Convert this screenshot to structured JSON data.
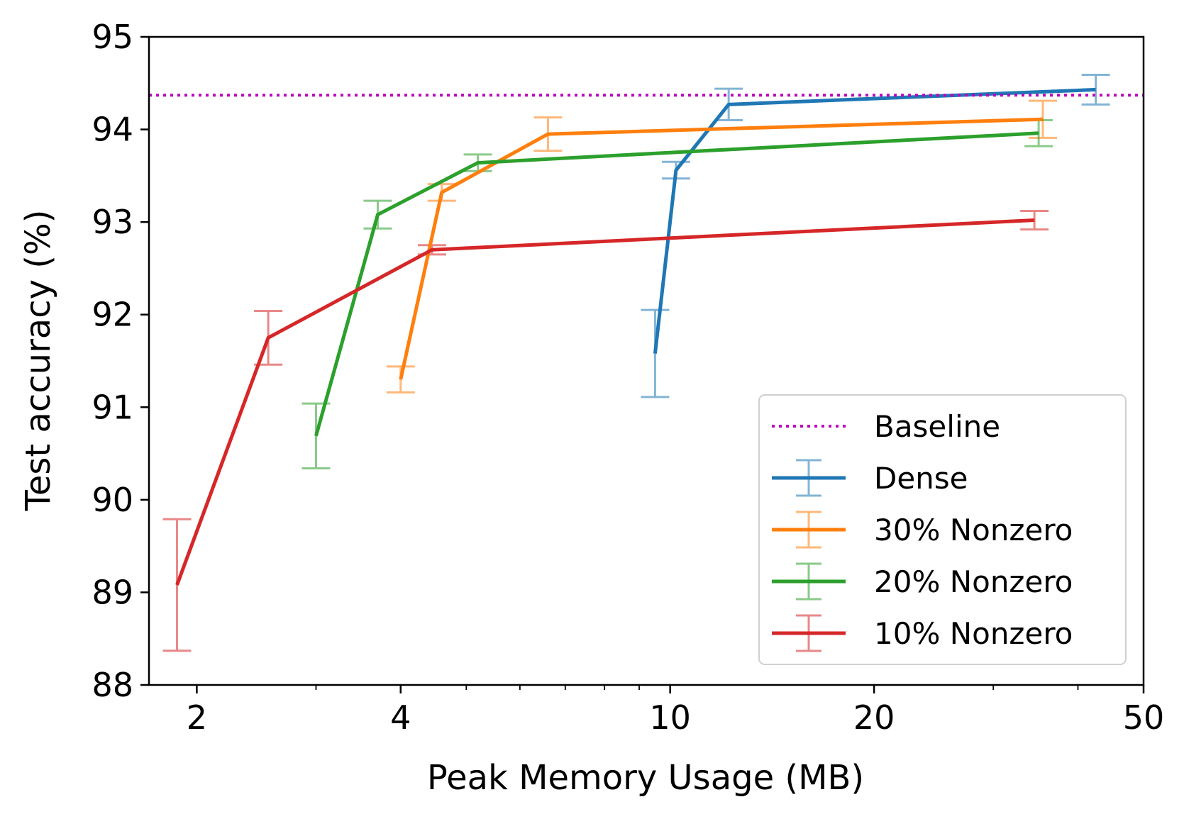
{
  "chart_data": {
    "type": "line",
    "xlabel": "Peak Memory Usage (MB)",
    "ylabel": "Test accuracy (%)",
    "xscale": "log",
    "xlim": [
      1.7,
      50
    ],
    "ylim": [
      88,
      95
    ],
    "xticks": [
      2,
      4,
      10,
      20,
      50
    ],
    "yticks": [
      88,
      89,
      90,
      91,
      92,
      93,
      94,
      95
    ],
    "grid": false,
    "legend_position": "lower-right",
    "baseline": {
      "name": "Baseline",
      "value": 94.37,
      "color": "#bf00bf",
      "style": "dotted"
    },
    "series": [
      {
        "name": "Dense",
        "color": "#1f77b4",
        "x": [
          9.5,
          10.2,
          12.2,
          42.5
        ],
        "y": [
          91.58,
          93.56,
          94.27,
          94.43
        ],
        "err": [
          0.47,
          0.09,
          0.17,
          0.16
        ]
      },
      {
        "name": "30% Nonzero",
        "color": "#ff7f0e",
        "x": [
          4.0,
          4.6,
          6.6,
          35.5
        ],
        "y": [
          91.3,
          93.32,
          93.95,
          94.11
        ],
        "err": [
          0.14,
          0.09,
          0.18,
          0.2
        ]
      },
      {
        "name": "20% Nonzero",
        "color": "#2ca02c",
        "x": [
          3.0,
          3.7,
          5.2,
          35.0
        ],
        "y": [
          90.69,
          93.08,
          93.64,
          93.96
        ],
        "err": [
          0.35,
          0.15,
          0.09,
          0.14
        ]
      },
      {
        "name": "10% Nonzero",
        "color": "#d62728",
        "x": [
          1.87,
          2.55,
          4.45,
          34.5
        ],
        "y": [
          89.08,
          91.75,
          92.7,
          93.02
        ],
        "err": [
          0.71,
          0.29,
          0.05,
          0.1
        ]
      }
    ]
  }
}
